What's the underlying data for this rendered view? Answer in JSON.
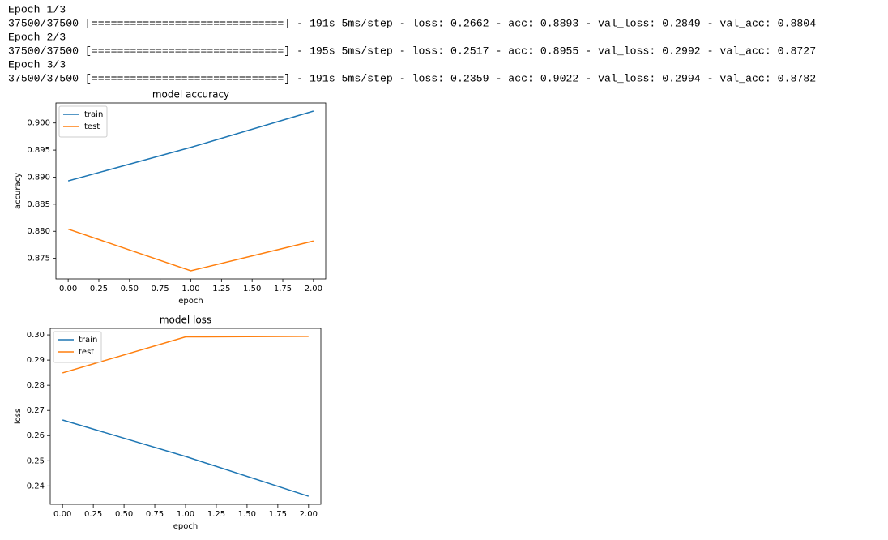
{
  "log": [
    "Epoch 1/3",
    "37500/37500 [==============================] - 191s 5ms/step - loss: 0.2662 - acc: 0.8893 - val_loss: 0.2849 - val_acc: 0.8804",
    "Epoch 2/3",
    "37500/37500 [==============================] - 195s 5ms/step - loss: 0.2517 - acc: 0.8955 - val_loss: 0.2992 - val_acc: 0.8727",
    "Epoch 3/3",
    "37500/37500 [==============================] - 191s 5ms/step - loss: 0.2359 - acc: 0.9022 - val_loss: 0.2994 - val_acc: 0.8782"
  ],
  "chart_data": [
    {
      "type": "line",
      "title": "model accuracy",
      "x_label": "epoch",
      "y_label": "accuracy",
      "x": [
        0,
        1,
        2
      ],
      "series": [
        {
          "name": "train",
          "color": "#1f77b4",
          "values": [
            0.8893,
            0.8955,
            0.9022
          ]
        },
        {
          "name": "test",
          "color": "#ff7f0e",
          "values": [
            0.8804,
            0.8727,
            0.8782
          ]
        }
      ],
      "xlim": [
        -0.1,
        2.1
      ],
      "xticks": [
        {
          "value": 0,
          "label": "0.00"
        },
        {
          "value": 0.25,
          "label": "0.25"
        },
        {
          "value": 0.5,
          "label": "0.50"
        },
        {
          "value": 0.75,
          "label": "0.75"
        },
        {
          "value": 1,
          "label": "1.00"
        },
        {
          "value": 1.25,
          "label": "1.25"
        },
        {
          "value": 1.5,
          "label": "1.50"
        },
        {
          "value": 1.75,
          "label": "1.75"
        },
        {
          "value": 2,
          "label": "2.00"
        }
      ],
      "ylim": [
        0.8712,
        0.9037
      ],
      "yticks": [
        0.875,
        {
          "value": 0.88,
          "label": "0.880"
        },
        0.885,
        {
          "value": 0.89,
          "label": "0.890"
        },
        0.895,
        {
          "value": 0.9,
          "label": "0.900"
        }
      ],
      "legend": "upper left"
    },
    {
      "type": "line",
      "title": "model loss",
      "x_label": "epoch",
      "y_label": "loss",
      "x": [
        0,
        1,
        2
      ],
      "series": [
        {
          "name": "train",
          "color": "#1f77b4",
          "values": [
            0.2662,
            0.2517,
            0.2359
          ]
        },
        {
          "name": "test",
          "color": "#ff7f0e",
          "values": [
            0.2849,
            0.2992,
            0.2994
          ]
        }
      ],
      "xlim": [
        -0.1,
        2.1
      ],
      "xticks": [
        {
          "value": 0,
          "label": "0.00"
        },
        {
          "value": 0.25,
          "label": "0.25"
        },
        {
          "value": 0.5,
          "label": "0.50"
        },
        {
          "value": 0.75,
          "label": "0.75"
        },
        {
          "value": 1,
          "label": "1.00"
        },
        {
          "value": 1.25,
          "label": "1.25"
        },
        {
          "value": 1.5,
          "label": "1.50"
        },
        {
          "value": 1.75,
          "label": "1.75"
        },
        {
          "value": 2,
          "label": "2.00"
        }
      ],
      "ylim": [
        0.2327,
        0.3026
      ],
      "yticks": [
        0.24,
        0.25,
        0.26,
        0.27,
        0.28,
        0.29,
        {
          "value": 0.3,
          "label": "0.30"
        }
      ],
      "legend": "upper left"
    }
  ]
}
